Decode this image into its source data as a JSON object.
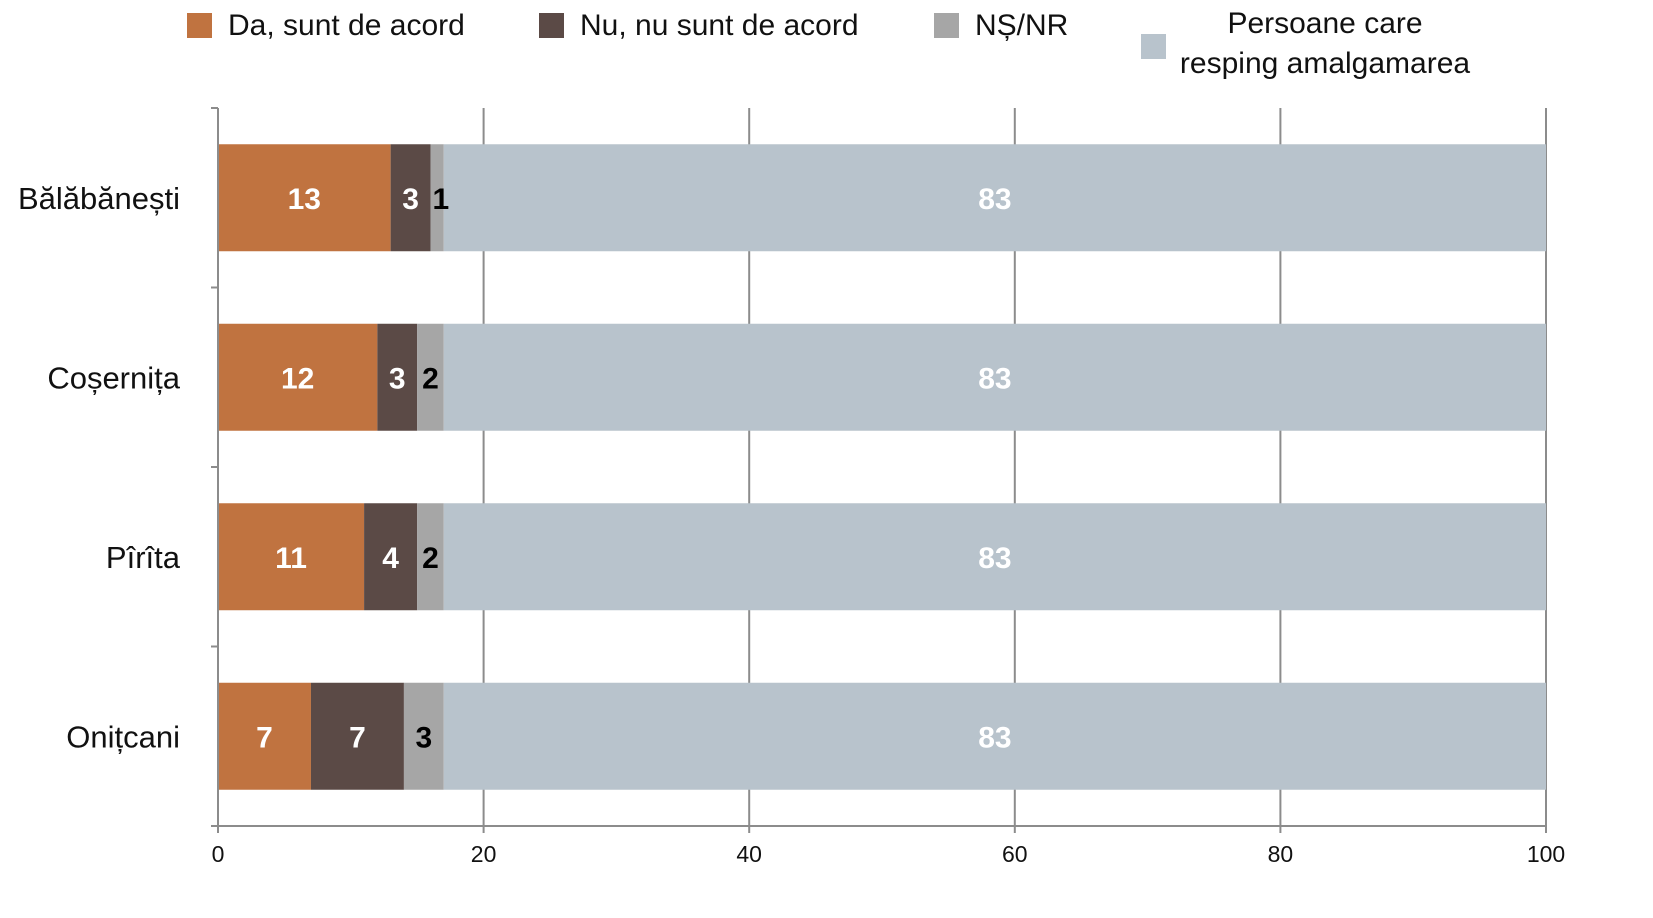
{
  "chart_data": {
    "type": "bar",
    "orientation": "horizontal",
    "stacked": true,
    "categories": [
      "Bălăbănești",
      "Coșernița",
      "Pîrîta",
      "Onițcani"
    ],
    "series": [
      {
        "name": "Da, sunt de acord",
        "values": [
          13,
          12,
          11,
          7
        ],
        "color": "#C07340",
        "label_color": "#ffffff"
      },
      {
        "name": "Nu, nu sunt de acord",
        "values": [
          3,
          3,
          4,
          7
        ],
        "color": "#5B4A46",
        "label_color": "#ffffff"
      },
      {
        "name": "NȘ/NR",
        "values": [
          1,
          2,
          2,
          3
        ],
        "color": "#A6A6A6",
        "label_color": "#000000"
      },
      {
        "name": "Persoane care resping amalgamarea",
        "name_lines": [
          "Persoane care",
          "resping amalgamarea"
        ],
        "values": [
          83,
          83,
          83,
          83
        ],
        "color": "#B8C3CC",
        "label_color": "#ffffff"
      }
    ],
    "xlim": [
      0,
      100
    ],
    "x_ticks": [
      0,
      20,
      40,
      60,
      80,
      100
    ],
    "x_tick_labels": [
      "0",
      "20",
      "40",
      "60",
      "80",
      "100"
    ],
    "grid": true,
    "legend_position": "top",
    "title": "",
    "xlabel": "",
    "ylabel": ""
  }
}
